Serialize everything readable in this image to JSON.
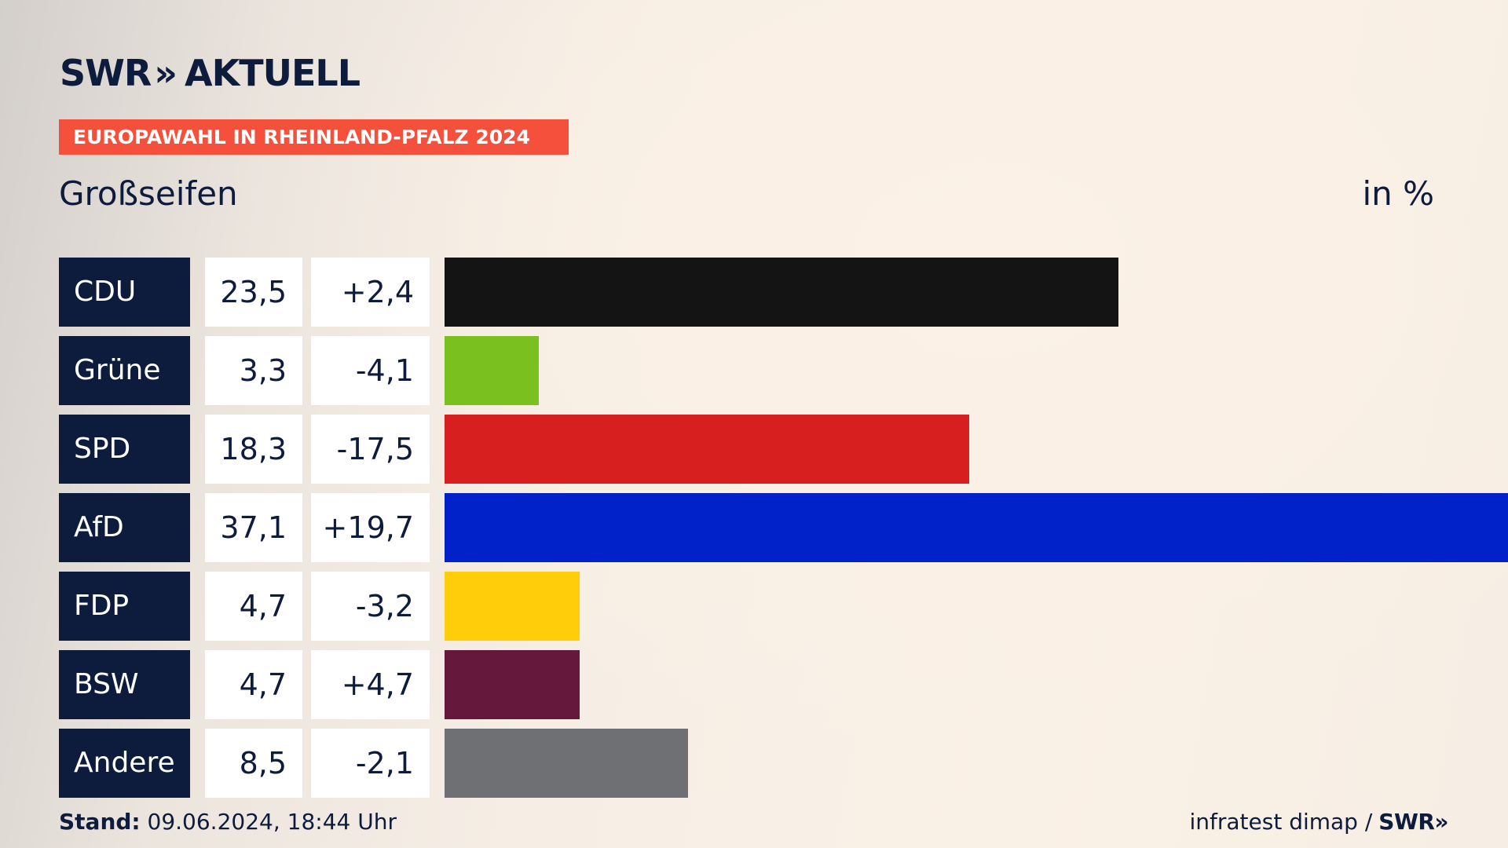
{
  "header": {
    "logo_swr": "SWR",
    "logo_chevrons": "»",
    "logo_aktuell": "AKTUELL",
    "badge": "EUROPAWAHL IN RHEINLAND-PFALZ 2024",
    "place": "Großseifen",
    "unit": "in %"
  },
  "chart_data": {
    "type": "bar",
    "orientation": "horizontal",
    "categories": [
      "CDU",
      "Grüne",
      "SPD",
      "AfD",
      "FDP",
      "BSW",
      "Andere"
    ],
    "values": [
      23.5,
      3.3,
      18.3,
      37.1,
      4.7,
      4.7,
      8.5
    ],
    "value_labels": [
      "23,5",
      "3,3",
      "18,3",
      "37,1",
      "4,7",
      "4,7",
      "8,5"
    ],
    "changes": [
      "+2,4",
      "-4,1",
      "-17,5",
      "+19,7",
      "-3,2",
      "+4,7",
      "-2,1"
    ],
    "colors": [
      "#141414",
      "#7ac01e",
      "#d81f1f",
      "#0022c8",
      "#ffcd0a",
      "#65183c",
      "#6f7073"
    ],
    "xlim": [
      0,
      37.1
    ],
    "title": "Großseifen",
    "unit": "in %",
    "grid": false
  },
  "footer": {
    "stand_label": "Stand:",
    "stand_value": " 09.06.2024, 18:44 Uhr",
    "source": "infratest dimap /",
    "source_brand": "SWR»"
  }
}
